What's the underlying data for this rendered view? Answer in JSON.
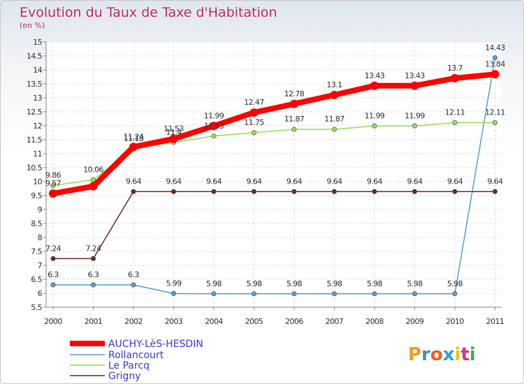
{
  "chart_data": {
    "type": "line",
    "title": "Evolution du Taux de Taxe d'Habitation",
    "subtitle": "(en %)",
    "categories": [
      "2000",
      "2001",
      "2002",
      "2003",
      "2004",
      "2005",
      "2006",
      "2007",
      "2008",
      "2009",
      "2010",
      "2011"
    ],
    "ylim": [
      5.5,
      15
    ],
    "yticks": [
      5.5,
      6,
      6.5,
      7,
      7.5,
      8,
      8.5,
      9,
      9.5,
      10,
      10.5,
      11,
      11.5,
      12,
      12.5,
      13,
      13.5,
      14,
      14.5,
      15
    ],
    "grid": true,
    "legend_position": "bottom-left",
    "series": [
      {
        "name": "AUCHY-LèS-HESDIN",
        "color": "#ff0000",
        "values": [
          9.57,
          9.83,
          11.24,
          11.53,
          11.99,
          12.47,
          12.78,
          13.1,
          13.43,
          13.43,
          13.7,
          13.84
        ],
        "labels": [
          "9.57",
          "",
          "11.24",
          "11.53",
          "11.99",
          "12.47",
          "12.78",
          "13.1",
          "13.43",
          "13.43",
          "13.7",
          "13.84"
        ]
      },
      {
        "name": "Rollancourt",
        "color": "#5a9fd4",
        "values": [
          6.3,
          6.3,
          6.3,
          5.99,
          5.98,
          5.98,
          5.98,
          5.98,
          5.98,
          5.98,
          5.98,
          14.43
        ],
        "labels": [
          "6.3",
          "6.3",
          "6.3",
          "5.99",
          "5.98",
          "5.98",
          "5.98",
          "5.98",
          "5.98",
          "5.98",
          "5.98",
          "14.43"
        ]
      },
      {
        "name": "Le Parcq",
        "color": "#99dd55",
        "values": [
          9.86,
          10.06,
          11.18,
          11.4,
          11.63,
          11.75,
          11.87,
          11.87,
          11.99,
          11.99,
          12.11,
          12.11
        ],
        "labels": [
          "9.86",
          "10.06",
          "11.18",
          "11.4",
          "11.63",
          "11.75",
          "11.87",
          "11.87",
          "11.99",
          "11.99",
          "12.11",
          "12.11"
        ]
      },
      {
        "name": "Grigny",
        "color": "#6b2a2a",
        "values": [
          7.24,
          7.24,
          9.64,
          9.64,
          9.64,
          9.64,
          9.64,
          9.64,
          9.64,
          9.64,
          9.64,
          9.64
        ],
        "labels": [
          "7.24",
          "7.24",
          "9.64",
          "9.64",
          "9.64",
          "9.64",
          "9.64",
          "9.64",
          "9.64",
          "9.64",
          "9.64",
          "9.64"
        ]
      }
    ]
  },
  "branding": {
    "logo_text": "Proxiti"
  }
}
